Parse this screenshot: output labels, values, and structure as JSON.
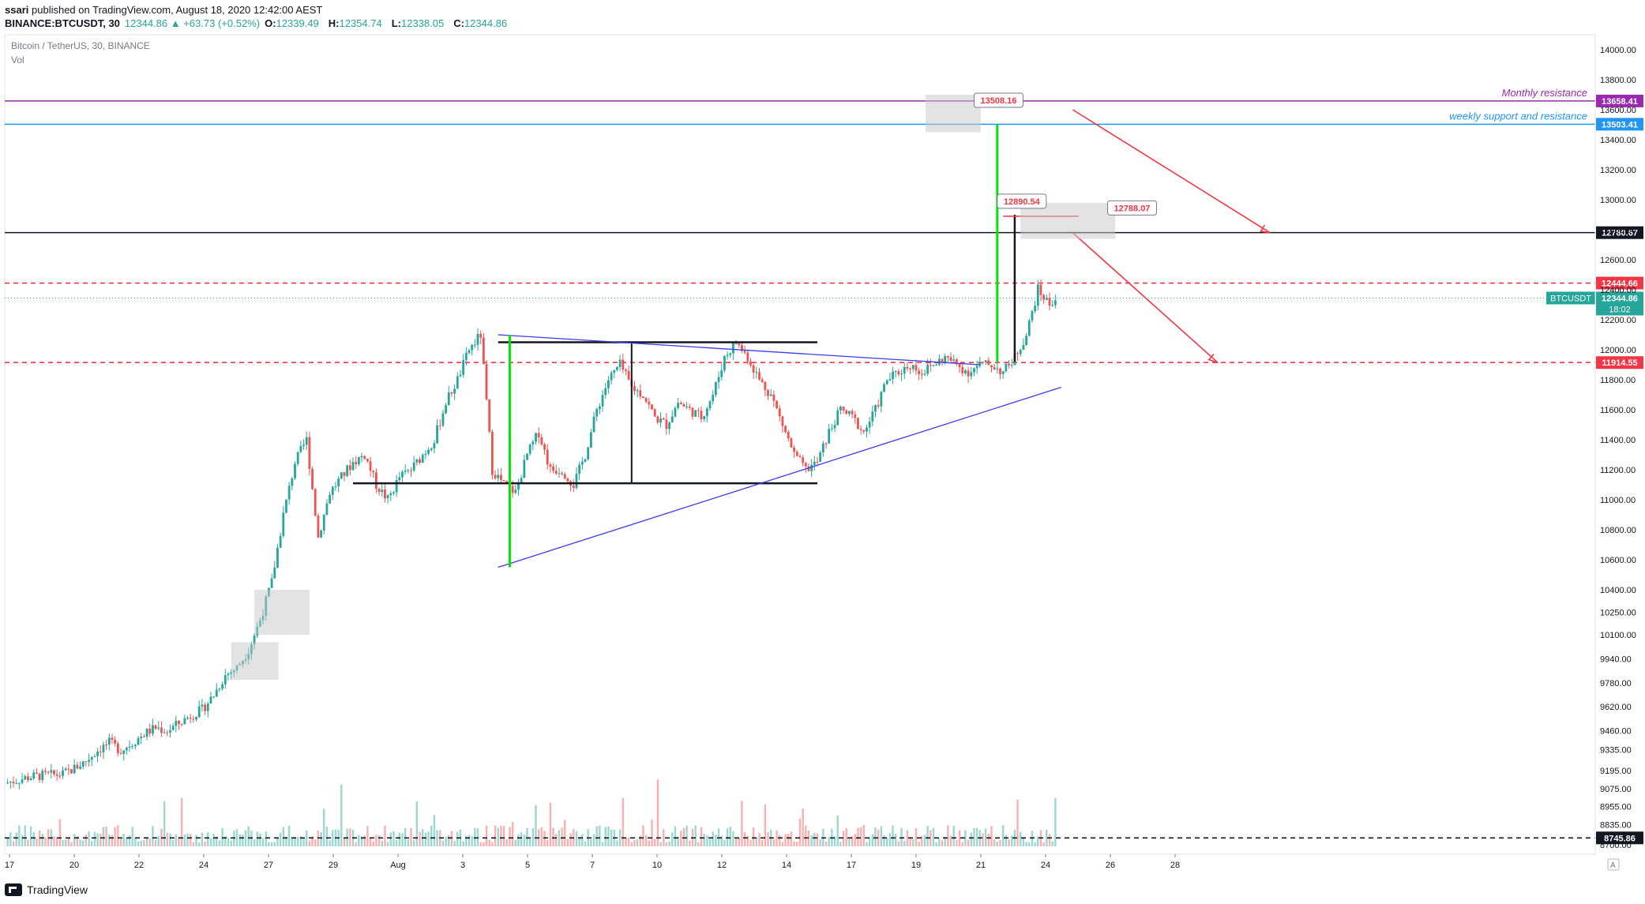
{
  "header": {
    "publisher_user": "ssari",
    "publisher_text": "published on TradingView.com, August 18, 2020 12:42:00 AEST",
    "symbol": "BINANCE:BTCUSDT, 30",
    "change": "12344.86 ▲ +63.73 (+0.52%)",
    "o_label": "O:",
    "o_value": "12339.49",
    "h_label": "H:",
    "h_value": "12354.74",
    "l_label": "L:",
    "l_value": "12338.05",
    "c_label": "C:",
    "c_value": "12344.86"
  },
  "footer": {
    "brand": "TradingView"
  },
  "colors": {
    "up": "#26a69a",
    "down": "#ef5350",
    "monthly": "#9c27b0",
    "weekly": "#2196f3",
    "support_red": "#f23645",
    "trend_blue": "#3a3af0",
    "target_green": "#00e600",
    "level_black": "#131722"
  },
  "chart_data": {
    "type": "candlestick",
    "title": "Bitcoin / TetherUS, 30, BINANCE",
    "subtitle": "Vol",
    "ylim": [
      8700,
      14100
    ],
    "y_ticks": [
      "14000.00",
      "13800.00",
      "13600.00",
      "13400.00",
      "13200.00",
      "13000.00",
      "12800.00",
      "12600.00",
      "12400.00",
      "12200.00",
      "12000.00",
      "11800.00",
      "11600.00",
      "11400.00",
      "11200.00",
      "11000.00",
      "10800.00",
      "10600.00",
      "10400.00",
      "10250.00",
      "10100.00",
      "9940.00",
      "9780.00",
      "9620.00",
      "9460.00",
      "9335.00",
      "9195.00",
      "9075.00",
      "8955.00",
      "8835.00",
      "8700.00"
    ],
    "x_ticks": [
      "17",
      "20",
      "22",
      "24",
      "27",
      "29",
      "Aug",
      "3",
      "5",
      "7",
      "10",
      "12",
      "14",
      "17",
      "19",
      "21",
      "24",
      "26",
      "28"
    ],
    "horizontal_levels": [
      {
        "price": 13658.41,
        "label": "13658.41",
        "text": "Monthly resistance",
        "style": "solid",
        "color": "#9c27b0"
      },
      {
        "price": 13503.41,
        "label": "13503.41",
        "text": "weekly support and resistance",
        "style": "solid",
        "color": "#2196f3"
      },
      {
        "price": 12780.67,
        "label": "12780.67",
        "text": "",
        "style": "solid",
        "color": "#131722"
      },
      {
        "price": 12444.66,
        "label": "12444.66",
        "text": "",
        "style": "dashed",
        "color": "#f23645"
      },
      {
        "price": 11914.55,
        "label": "11914.55",
        "text": "",
        "style": "dashed",
        "color": "#f23645"
      },
      {
        "price": 8745.86,
        "label": "8745.86",
        "text": "",
        "style": "dashed",
        "color": "#131722"
      }
    ],
    "current_price": {
      "label": "BTCUSDT",
      "value": "12344.86",
      "countdown": "18:02"
    },
    "callouts": [
      "13508.16",
      "12890.54",
      "12788.07"
    ],
    "price_path": [
      [
        0,
        9110
      ],
      [
        2,
        9130
      ],
      [
        4,
        9150
      ],
      [
        6,
        9160
      ],
      [
        8,
        9165
      ],
      [
        10,
        9170
      ],
      [
        12,
        9210
      ],
      [
        14,
        9260
      ],
      [
        16,
        9330
      ],
      [
        18,
        9380
      ],
      [
        20,
        9330
      ],
      [
        22,
        9380
      ],
      [
        24,
        9440
      ],
      [
        26,
        9480
      ],
      [
        28,
        9460
      ],
      [
        30,
        9510
      ],
      [
        32,
        9560
      ],
      [
        34,
        9600
      ],
      [
        36,
        9700
      ],
      [
        38,
        9830
      ],
      [
        40,
        9880
      ],
      [
        42,
        10000
      ],
      [
        44,
        10200
      ],
      [
        46,
        10450
      ],
      [
        48,
        10900
      ],
      [
        50,
        11250
      ],
      [
        52,
        11400
      ],
      [
        54,
        10750
      ],
      [
        56,
        11050
      ],
      [
        58,
        11150
      ],
      [
        60,
        11250
      ],
      [
        62,
        11300
      ],
      [
        64,
        11100
      ],
      [
        66,
        11000
      ],
      [
        68,
        11150
      ],
      [
        70,
        11200
      ],
      [
        72,
        11300
      ],
      [
        74,
        11400
      ],
      [
        76,
        11650
      ],
      [
        78,
        11800
      ],
      [
        80,
        12000
      ],
      [
        82,
        12100
      ],
      [
        84,
        11200
      ],
      [
        86,
        11100
      ],
      [
        88,
        11050
      ],
      [
        90,
        11300
      ],
      [
        92,
        11450
      ],
      [
        94,
        11200
      ],
      [
        96,
        11200
      ],
      [
        98,
        11100
      ],
      [
        100,
        11300
      ],
      [
        102,
        11600
      ],
      [
        104,
        11800
      ],
      [
        106,
        11900
      ],
      [
        108,
        11750
      ],
      [
        110,
        11700
      ],
      [
        112,
        11550
      ],
      [
        114,
        11500
      ],
      [
        116,
        11650
      ],
      [
        118,
        11600
      ],
      [
        120,
        11550
      ],
      [
        122,
        11700
      ],
      [
        124,
        11950
      ],
      [
        126,
        12050
      ],
      [
        128,
        11950
      ],
      [
        130,
        11800
      ],
      [
        132,
        11700
      ],
      [
        134,
        11500
      ],
      [
        136,
        11300
      ],
      [
        138,
        11200
      ],
      [
        140,
        11250
      ],
      [
        142,
        11450
      ],
      [
        144,
        11600
      ],
      [
        146,
        11550
      ],
      [
        148,
        11450
      ],
      [
        150,
        11600
      ],
      [
        152,
        11800
      ],
      [
        154,
        11850
      ],
      [
        156,
        11900
      ],
      [
        158,
        11850
      ],
      [
        160,
        11900
      ],
      [
        162,
        11950
      ],
      [
        164,
        11900
      ],
      [
        166,
        11850
      ],
      [
        168,
        11900
      ],
      [
        170,
        11900
      ],
      [
        172,
        11850
      ],
      [
        174,
        11950
      ],
      [
        176,
        12100
      ],
      [
        178,
        12400
      ],
      [
        180,
        12300
      ],
      [
        181,
        12345
      ]
    ],
    "drawings": {
      "rectangle_top": 12050,
      "rectangle_bottom": 11110,
      "triangle_upper": [
        [
          85,
          12100
        ],
        [
          168,
          11900
        ]
      ],
      "triangle_lower": [
        [
          85,
          10550
        ],
        [
          182,
          11750
        ]
      ],
      "flagpole_1": [
        [
          87,
          12100
        ],
        [
          87,
          10550
        ]
      ],
      "flagpole_2": [
        [
          171,
          13500
        ],
        [
          171,
          11920
        ]
      ],
      "projection_1": [
        [
          184,
          13600
        ],
        [
          218,
          12780
        ]
      ],
      "projection_2": [
        [
          184,
          12780
        ],
        [
          209,
          11914
        ]
      ]
    }
  }
}
